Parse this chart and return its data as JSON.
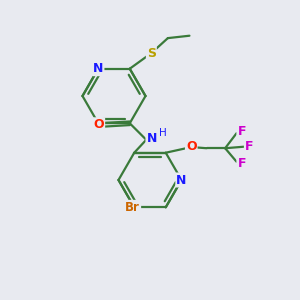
{
  "background_color": "#e8eaf0",
  "bond_color": "#3a7a3a",
  "atom_colors": {
    "N": "#1a1aff",
    "O": "#ff2200",
    "S": "#b8a000",
    "Br": "#cc6600",
    "F": "#cc00cc",
    "C": "#3a7a3a"
  },
  "figsize": [
    3.0,
    3.0
  ],
  "dpi": 100
}
